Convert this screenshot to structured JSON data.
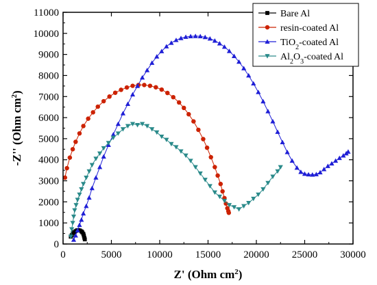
{
  "chart_data": {
    "type": "scatter",
    "xlabel": {
      "main": "Z'",
      "unit_prefix": "(Ohm cm",
      "unit_sup": "2",
      "unit_suffix": ")"
    },
    "ylabel": {
      "main": "-Z''",
      "unit_prefix": "(Ohm cm",
      "unit_sup": "2",
      "unit_suffix": ")"
    },
    "xlim": [
      0,
      30000
    ],
    "ylim": [
      0,
      11000
    ],
    "xticks": [
      0,
      5000,
      10000,
      15000,
      20000,
      25000,
      30000
    ],
    "yticks": [
      0,
      1000,
      2000,
      3000,
      4000,
      5000,
      6000,
      7000,
      8000,
      9000,
      10000,
      11000
    ],
    "legend_position": "top-right",
    "series": [
      {
        "name": "Bare Al",
        "legend_parts": [
          {
            "text": "Bare Al"
          }
        ],
        "color": "#000000",
        "marker": "square",
        "x": [
          800,
          900,
          1000,
          1150,
          1300,
          1450,
          1600,
          1750,
          1900,
          2000,
          2100,
          2150,
          2200,
          2250
        ],
        "y": [
          350,
          420,
          500,
          560,
          610,
          650,
          660,
          640,
          600,
          550,
          480,
          400,
          300,
          220
        ]
      },
      {
        "name": "resin-coated Al",
        "legend_parts": [
          {
            "text": "resin-coated Al"
          }
        ],
        "color": "#cc2200",
        "marker": "circle",
        "x": [
          200,
          400,
          700,
          1000,
          1300,
          1700,
          2100,
          2600,
          3100,
          3600,
          4200,
          4800,
          5400,
          6000,
          6600,
          7200,
          7800,
          8400,
          9000,
          9600,
          10200,
          10800,
          11400,
          12000,
          12500,
          13000,
          13500,
          14000,
          14500,
          14900,
          15300,
          15700,
          16000,
          16300,
          16500,
          16700,
          16850,
          17000,
          17100,
          17150
        ],
        "y": [
          3150,
          3600,
          4100,
          4500,
          4850,
          5250,
          5600,
          5950,
          6250,
          6520,
          6780,
          7000,
          7180,
          7320,
          7430,
          7510,
          7550,
          7550,
          7510,
          7440,
          7330,
          7170,
          6970,
          6720,
          6460,
          6160,
          5820,
          5420,
          4980,
          4570,
          4120,
          3650,
          3250,
          2850,
          2500,
          2180,
          1920,
          1700,
          1560,
          1480
        ]
      },
      {
        "name": "TiO2-coated Al",
        "legend_parts": [
          {
            "text": "TiO"
          },
          {
            "text": "2",
            "sub": true
          },
          {
            "text": "-coated Al"
          }
        ],
        "color": "#1f1fd6",
        "marker": "triangle-up",
        "x": [
          1100,
          1300,
          1500,
          1700,
          1900,
          2100,
          2400,
          2700,
          3000,
          3400,
          3800,
          4200,
          4700,
          5200,
          5700,
          6200,
          6700,
          7200,
          7700,
          8200,
          8700,
          9200,
          9700,
          10200,
          10700,
          11200,
          11700,
          12200,
          12700,
          13200,
          13700,
          14200,
          14700,
          15200,
          15700,
          16200,
          16700,
          17200,
          17700,
          18200,
          18700,
          19200,
          19700,
          20200,
          20700,
          21200,
          21700,
          22200,
          22700,
          23200,
          23700,
          24200,
          24600,
          25000,
          25400,
          25800,
          26200,
          26600,
          27000,
          27400,
          27800,
          28200,
          28600,
          29000,
          29300,
          29500
        ],
        "y": [
          200,
          400,
          650,
          900,
          1150,
          1450,
          1800,
          2200,
          2650,
          3150,
          3650,
          4150,
          4700,
          5200,
          5700,
          6200,
          6650,
          7100,
          7500,
          7900,
          8250,
          8600,
          8900,
          9150,
          9380,
          9550,
          9680,
          9770,
          9830,
          9860,
          9870,
          9860,
          9820,
          9750,
          9650,
          9520,
          9360,
          9160,
          8920,
          8650,
          8340,
          8000,
          7620,
          7210,
          6770,
          6300,
          5820,
          5320,
          4830,
          4360,
          3950,
          3620,
          3420,
          3330,
          3300,
          3290,
          3310,
          3400,
          3550,
          3700,
          3820,
          3950,
          4080,
          4200,
          4300,
          4380
        ]
      },
      {
        "name": "Al2O3-coated Al",
        "legend_parts": [
          {
            "text": "Al"
          },
          {
            "text": "2",
            "sub": true
          },
          {
            "text": "O"
          },
          {
            "text": "3",
            "sub": true
          },
          {
            "text": "-coated Al"
          }
        ],
        "color": "#2a8a8a",
        "marker": "triangle-down",
        "x": [
          800,
          900,
          1000,
          1100,
          1200,
          1350,
          1500,
          1700,
          1900,
          2100,
          2400,
          2700,
          3000,
          3400,
          3800,
          4200,
          4700,
          5200,
          5700,
          6200,
          6700,
          7200,
          7700,
          8200,
          8700,
          9200,
          9700,
          10200,
          10700,
          11200,
          11700,
          12200,
          12700,
          13200,
          13700,
          14200,
          14700,
          15200,
          15700,
          16200,
          16700,
          17200,
          17700,
          18200,
          18700,
          19200,
          19700,
          20200,
          20700,
          21200,
          21700,
          22200,
          22500
        ],
        "y": [
          350,
          700,
          1000,
          1300,
          1600,
          1850,
          2100,
          2350,
          2600,
          2850,
          3150,
          3450,
          3750,
          4050,
          4300,
          4550,
          4800,
          5050,
          5250,
          5450,
          5600,
          5700,
          5650,
          5700,
          5600,
          5450,
          5300,
          5100,
          4950,
          4750,
          4600,
          4400,
          4200,
          3950,
          3650,
          3350,
          3050,
          2750,
          2450,
          2250,
          2050,
          1850,
          1750,
          1650,
          1800,
          1950,
          2150,
          2350,
          2600,
          2900,
          3200,
          3450,
          3650
        ]
      }
    ]
  }
}
